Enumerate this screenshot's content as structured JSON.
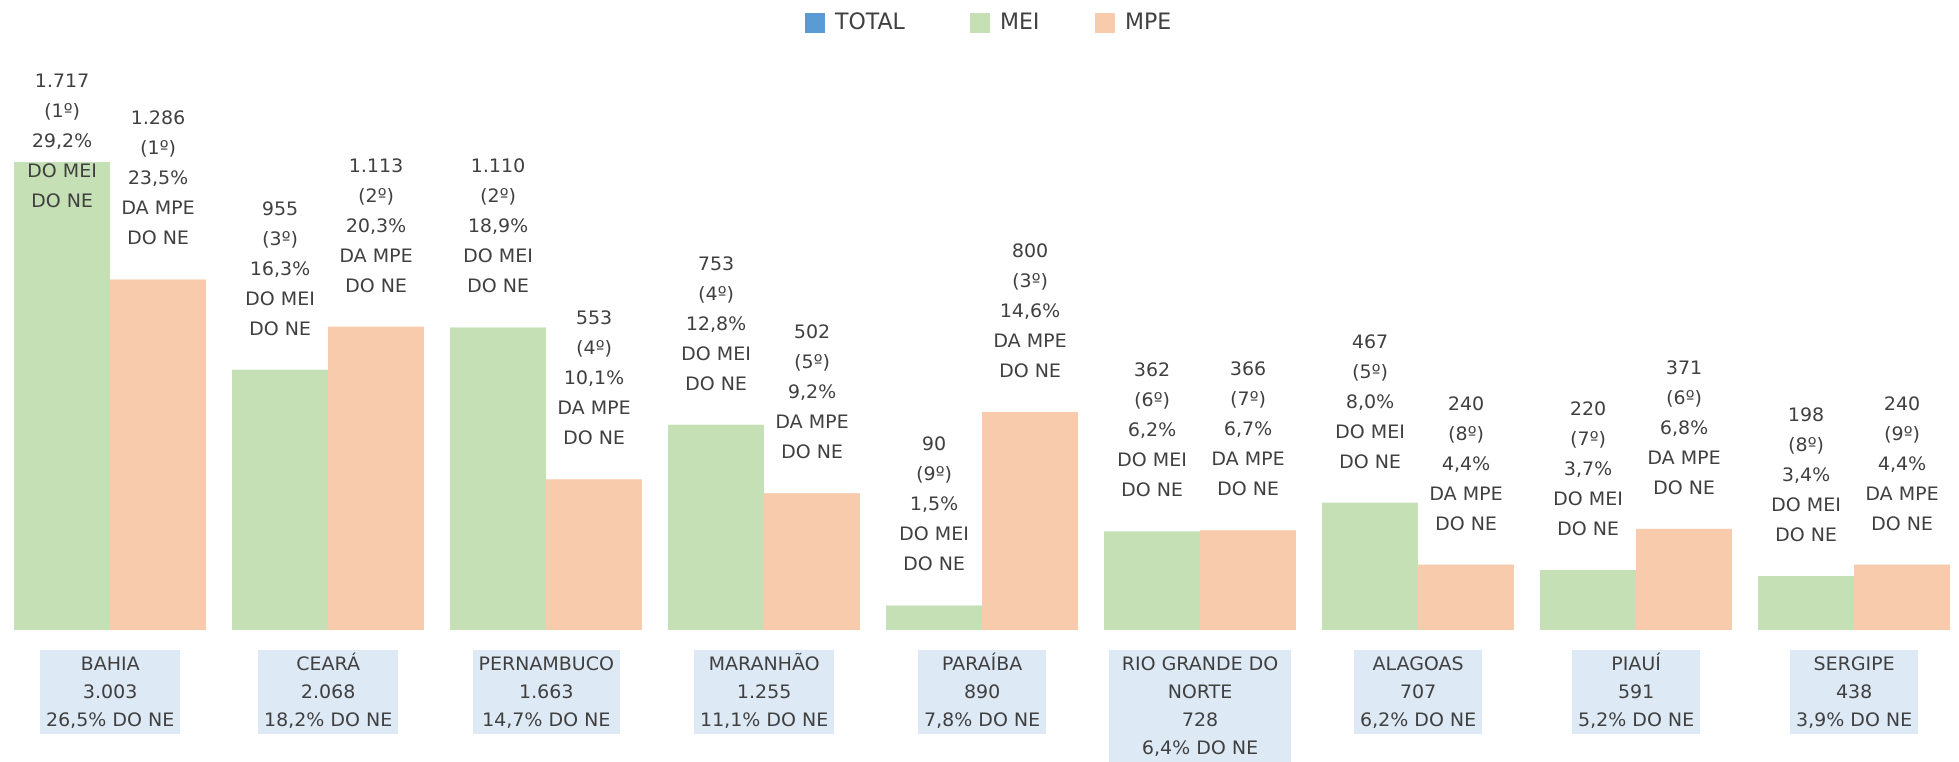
{
  "chart_data": {
    "type": "bar",
    "categories": [
      "BAHIA",
      "CEARÁ",
      "PERNAMBUCO",
      "MARANHÃO",
      "PARAÍBA",
      "RIO GRANDE DO NORTE",
      "ALAGOAS",
      "PIAUÍ",
      "SERGIPE"
    ],
    "category_shares": [
      "26,5% DO NE",
      "18,2% DO NE",
      "14,7% DO NE",
      "11,1% DO NE",
      "7,8% DO NE",
      "6,4% DO NE",
      "6,2% DO NE",
      "5,2% DO NE",
      "3,9% DO NE"
    ],
    "series": [
      {
        "name": "TOTAL",
        "color": "#5b9bd5",
        "values": [
          3003,
          2068,
          1663,
          1255,
          890,
          728,
          707,
          591,
          438
        ],
        "value_labels": [
          "3.003",
          "2.068",
          "1.663",
          "1.255",
          "890",
          "728",
          "707",
          "591",
          "438"
        ]
      },
      {
        "name": "MEI",
        "color": "#c5e0b4",
        "values": [
          1717,
          955,
          1110,
          753,
          90,
          362,
          467,
          220,
          198
        ],
        "value_labels": [
          "1.717",
          "955",
          "1.110",
          "753",
          "90",
          "362",
          "467",
          "220",
          "198"
        ],
        "ranks": [
          "(1º)",
          "(3º)",
          "(2º)",
          "(4º)",
          "(9º)",
          "(6º)",
          "(5º)",
          "(7º)",
          "(8º)"
        ],
        "shares": [
          "29,2%",
          "16,3%",
          "18,9%",
          "12,8%",
          "1,5%",
          "6,2%",
          "8,0%",
          "3,7%",
          "3,4%"
        ],
        "note": [
          "DO MEI",
          "DO NE"
        ]
      },
      {
        "name": "MPE",
        "color": "#f8cbad",
        "values": [
          1286,
          1113,
          553,
          502,
          800,
          366,
          240,
          371,
          240
        ],
        "value_labels": [
          "1.286",
          "1.113",
          "553",
          "502",
          "800",
          "366",
          "240",
          "371",
          "240"
        ],
        "ranks": [
          "(1º)",
          "(2º)",
          "(4º)",
          "(5º)",
          "(3º)",
          "(7º)",
          "(8º)",
          "(6º)",
          "(9º)"
        ],
        "shares": [
          "23,5%",
          "20,3%",
          "10,1%",
          "9,2%",
          "14,6%",
          "6,7%",
          "4,4%",
          "6,8%",
          "4,4%"
        ],
        "note": [
          "DA MPE",
          "DO NE"
        ]
      }
    ]
  }
}
